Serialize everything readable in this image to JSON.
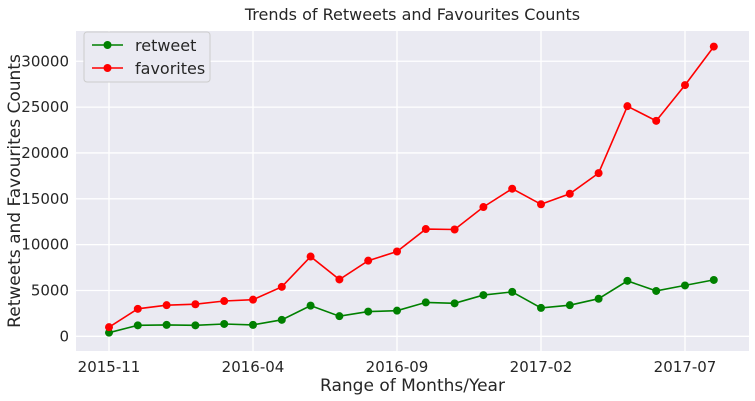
{
  "chart_data": {
    "type": "line",
    "title": "Trends of Retweets and Favourites Counts",
    "xlabel": "Range of Months/Year",
    "ylabel": "Retweets and Favourites Counts",
    "x": [
      "2015-11",
      "2015-12",
      "2016-01",
      "2016-02",
      "2016-03",
      "2016-04",
      "2016-05",
      "2016-06",
      "2016-07",
      "2016-08",
      "2016-09",
      "2016-10",
      "2016-11",
      "2016-12",
      "2017-01",
      "2017-02",
      "2017-03",
      "2017-04",
      "2017-05",
      "2017-06",
      "2017-07",
      "2017-08"
    ],
    "x_ticks": [
      "2015-11",
      "2016-04",
      "2016-09",
      "2017-02",
      "2017-07"
    ],
    "y_ticks": [
      0,
      5000,
      10000,
      15000,
      20000,
      25000,
      30000
    ],
    "ylim": [
      -1600,
      33300
    ],
    "series": [
      {
        "name": "retweet",
        "color": "#008000",
        "values": [
          400,
          1200,
          1250,
          1200,
          1350,
          1250,
          1800,
          3350,
          2200,
          2700,
          2800,
          3700,
          3600,
          4500,
          4850,
          3100,
          3400,
          4100,
          6050,
          4950,
          5550,
          6150
        ]
      },
      {
        "name": "favorites",
        "color": "#ff0000",
        "values": [
          1000,
          3000,
          3400,
          3500,
          3850,
          4000,
          5400,
          8700,
          6200,
          8250,
          9250,
          11700,
          11650,
          14100,
          16100,
          14400,
          15550,
          17800,
          25100,
          23500,
          27400,
          31600
        ]
      }
    ],
    "legend_position": "upper-left",
    "grid": true,
    "background": "#eaeaf2"
  }
}
